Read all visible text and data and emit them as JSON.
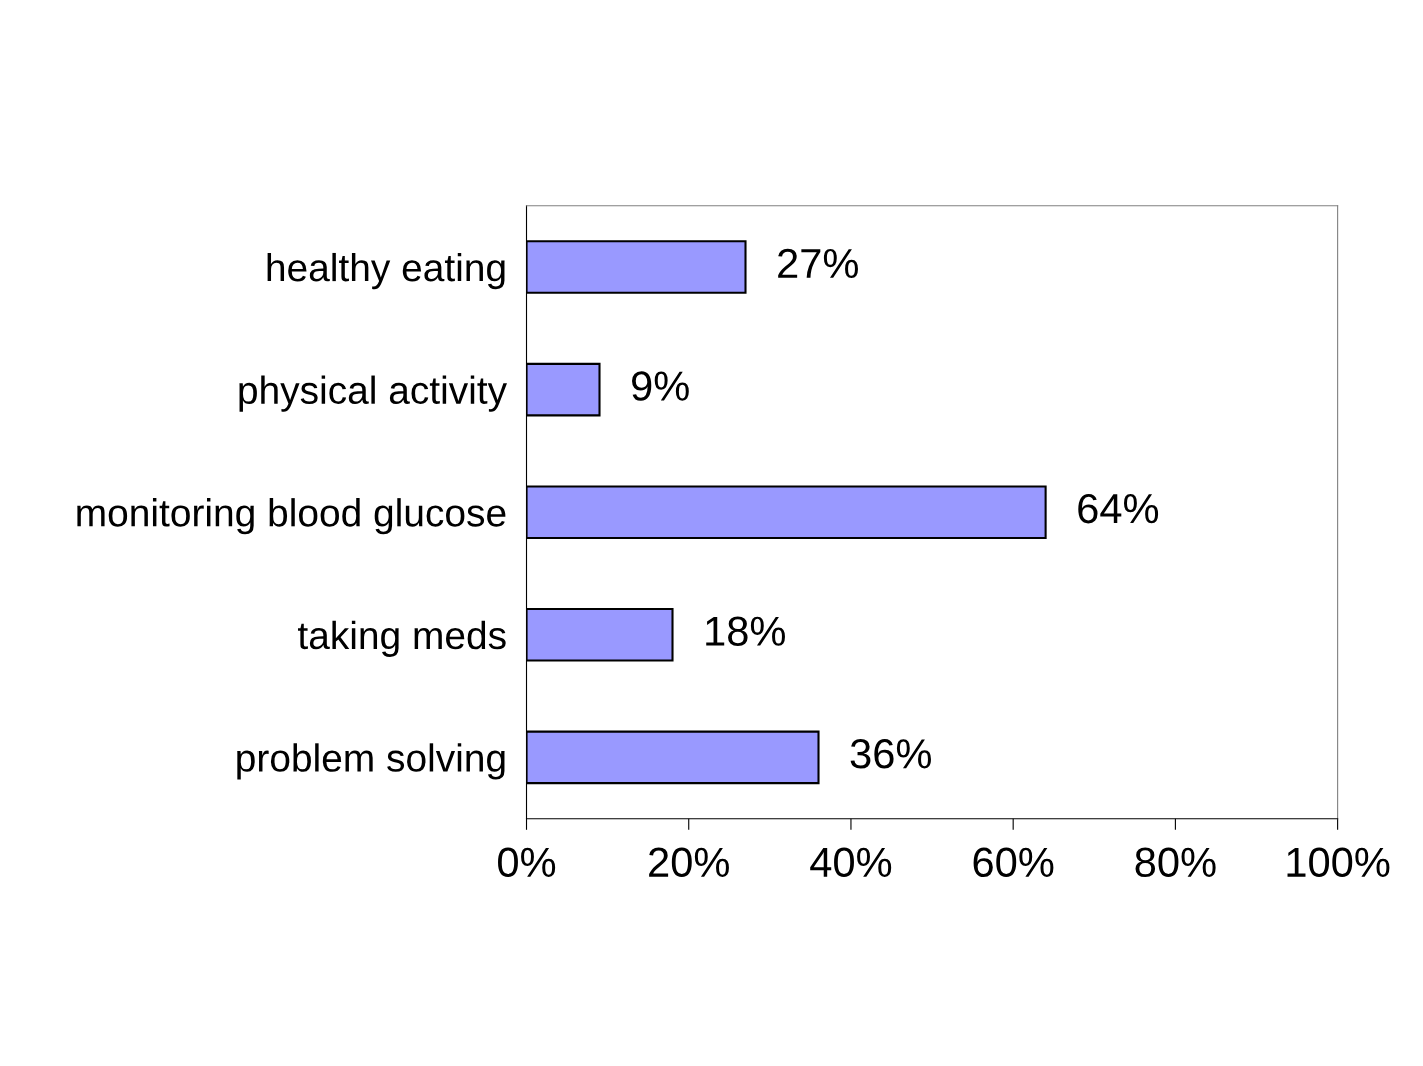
{
  "chart_data": {
    "type": "bar",
    "orientation": "horizontal",
    "categories": [
      "healthy eating",
      "physical activity",
      "monitoring blood glucose",
      "taking meds",
      "problem solving"
    ],
    "values": [
      27,
      9,
      64,
      18,
      36
    ],
    "value_labels": [
      "27%",
      "9%",
      "64%",
      "18%",
      "36%"
    ],
    "color": "#9999ff",
    "xlim": [
      0,
      100
    ],
    "xticks": [
      {
        "value": 0,
        "label": "0%"
      },
      {
        "value": 20,
        "label": "20%"
      },
      {
        "value": 40,
        "label": "40%"
      },
      {
        "value": 60,
        "label": "60%"
      },
      {
        "value": 80,
        "label": "80%"
      },
      {
        "value": 100,
        "label": "100%"
      }
    ],
    "grid": false
  }
}
